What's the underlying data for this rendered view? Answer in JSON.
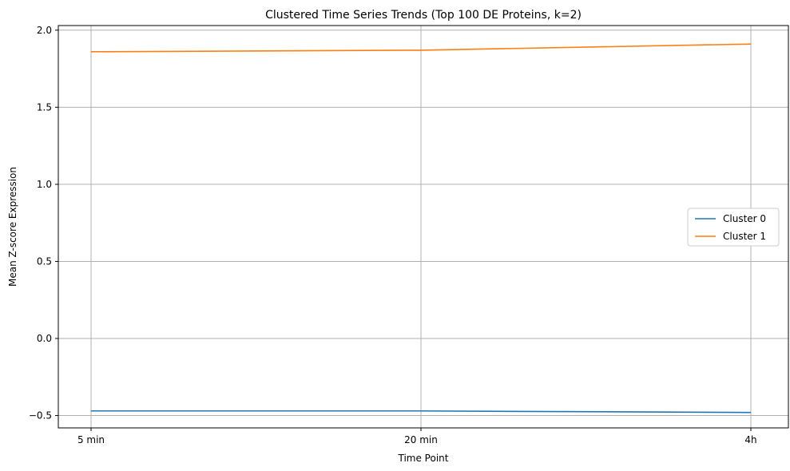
{
  "chart_data": {
    "type": "line",
    "title": "Clustered Time Series Trends (Top 100 DE Proteins, k=2)",
    "xlabel": "Time Point",
    "ylabel": "Mean Z-score Expression",
    "categories": [
      "5 min",
      "20 min",
      "4h"
    ],
    "ylim": [
      -0.58,
      2.03
    ],
    "yticks": [
      -0.5,
      0.0,
      0.5,
      1.0,
      1.5,
      2.0
    ],
    "ytick_labels": [
      "−0.5",
      "0.0",
      "0.5",
      "1.0",
      "1.5",
      "2.0"
    ],
    "grid": true,
    "legend": "center-right",
    "series": [
      {
        "name": "Cluster 0",
        "color": "#1f77b4",
        "values": [
          -0.47,
          -0.47,
          -0.48
        ]
      },
      {
        "name": "Cluster 1",
        "color": "#ff7f0e",
        "values": [
          1.86,
          1.87,
          1.91
        ]
      }
    ]
  }
}
